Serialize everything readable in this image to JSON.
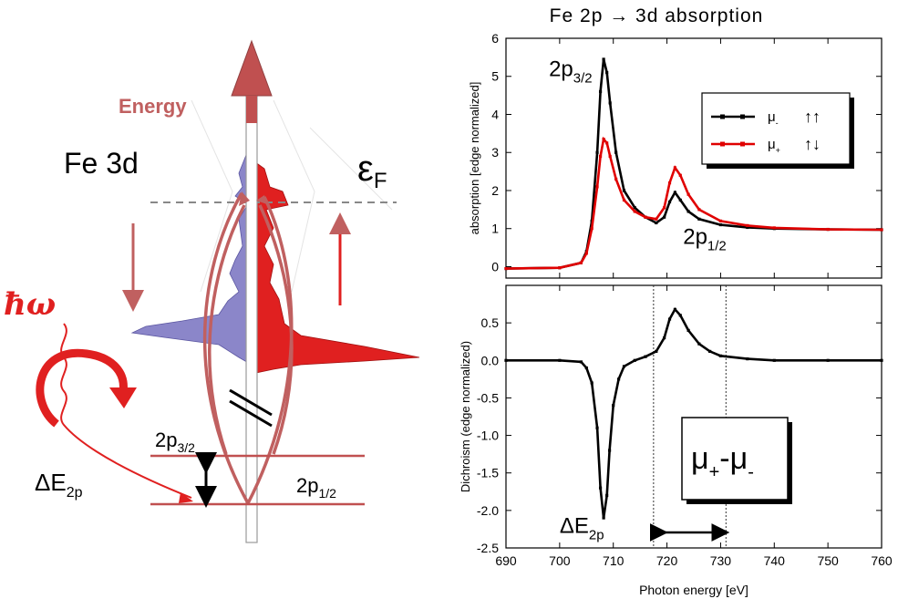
{
  "diagram": {
    "energy_label": "Energy",
    "fe3d_label": "Fe 3d",
    "fermi_label": "ε",
    "fermi_sub": "F",
    "photon_label": "ħω",
    "delta_label": "ΔE",
    "delta_sub": "2p",
    "level_upper_label": "2p",
    "level_upper_sub": "3/2",
    "level_lower_label": "2p",
    "level_lower_sub": "1/2",
    "colors": {
      "spin_down": "#8b86c9",
      "spin_up": "#e02020",
      "arrow": "#c06060",
      "level": "#c05050"
    }
  },
  "chart_data": [
    {
      "type": "line",
      "title": "Fe 2p → 3d  absorption",
      "xlabel": "",
      "ylabel": "absorption  [edge normalized]",
      "xlim": [
        690,
        760
      ],
      "ylim": [
        -0.3,
        6
      ],
      "yticks": [
        0,
        1,
        2,
        3,
        4,
        5,
        6
      ],
      "annotations": [
        {
          "text": "2p",
          "sub": "3/2",
          "x": 698,
          "y": 5.0
        },
        {
          "text": "2p",
          "sub": "1/2",
          "x": 723,
          "y": 0.6
        }
      ],
      "legend": {
        "position": "top-right",
        "entries": [
          {
            "label": "μ",
            "sub": "-",
            "arrows": "↑↑",
            "color": "#000000"
          },
          {
            "label": "μ",
            "sub": "+",
            "arrows": "↑↓",
            "color": "#e00000"
          }
        ]
      },
      "series": [
        {
          "color": "#000000",
          "x": [
            690,
            700,
            704,
            705,
            706,
            707,
            707.6,
            708.2,
            708.8,
            709.4,
            710.5,
            712,
            714,
            716,
            718,
            719.5,
            720.5,
            721.5,
            722.5,
            724,
            726,
            730,
            735,
            740,
            750,
            760
          ],
          "y": [
            -0.05,
            -0.03,
            0.1,
            0.4,
            1.2,
            3.0,
            4.6,
            5.45,
            5.1,
            4.3,
            3.0,
            2.0,
            1.55,
            1.3,
            1.15,
            1.3,
            1.7,
            1.95,
            1.75,
            1.45,
            1.25,
            1.1,
            1.03,
            1.0,
            0.98,
            0.97
          ]
        },
        {
          "color": "#e00000",
          "x": [
            690,
            700,
            704,
            705,
            706,
            707,
            707.6,
            708.2,
            708.8,
            709.4,
            710.5,
            712,
            714,
            716,
            718,
            719.5,
            720.5,
            721.5,
            722.5,
            724,
            726,
            730,
            735,
            740,
            750,
            760
          ],
          "y": [
            -0.05,
            -0.03,
            0.1,
            0.35,
            1.0,
            2.1,
            2.9,
            3.35,
            3.25,
            2.9,
            2.3,
            1.75,
            1.45,
            1.3,
            1.25,
            1.55,
            2.2,
            2.6,
            2.4,
            1.9,
            1.5,
            1.2,
            1.08,
            1.02,
            0.98,
            0.97
          ]
        }
      ]
    },
    {
      "type": "line",
      "title": "",
      "xlabel": "Photon energy [eV]",
      "ylabel": "Dichroism (edge normalized)",
      "xlim": [
        690,
        760
      ],
      "ylim": [
        -2.5,
        1.0
      ],
      "xticks": [
        690,
        700,
        710,
        720,
        730,
        740,
        750,
        760
      ],
      "yticks": [
        -2.5,
        -2.0,
        -1.5,
        -1.0,
        -0.5,
        0.0,
        0.5
      ],
      "annotations": [
        {
          "text": "ΔE",
          "sub": "2p",
          "x": 700,
          "y": -2.3
        },
        {
          "text": "μ",
          "sub": "+",
          "text2": "-μ",
          "sub2": "-",
          "box": true
        }
      ],
      "vlines": [
        717.5,
        731
      ],
      "series": [
        {
          "color": "#000000",
          "x": [
            690,
            700,
            704,
            705,
            706,
            707,
            707.6,
            708.2,
            708.8,
            709.3,
            710,
            711,
            712,
            714,
            716,
            718,
            719.5,
            720.5,
            721.5,
            722.5,
            724,
            726,
            728,
            730,
            735,
            740,
            750,
            760
          ],
          "y": [
            0,
            0,
            -0.02,
            -0.1,
            -0.3,
            -0.9,
            -1.7,
            -2.1,
            -1.8,
            -1.2,
            -0.6,
            -0.25,
            -0.08,
            0.0,
            0.05,
            0.12,
            0.3,
            0.55,
            0.68,
            0.6,
            0.4,
            0.22,
            0.12,
            0.06,
            0.02,
            0.0,
            0.0,
            0.0
          ]
        }
      ]
    }
  ]
}
